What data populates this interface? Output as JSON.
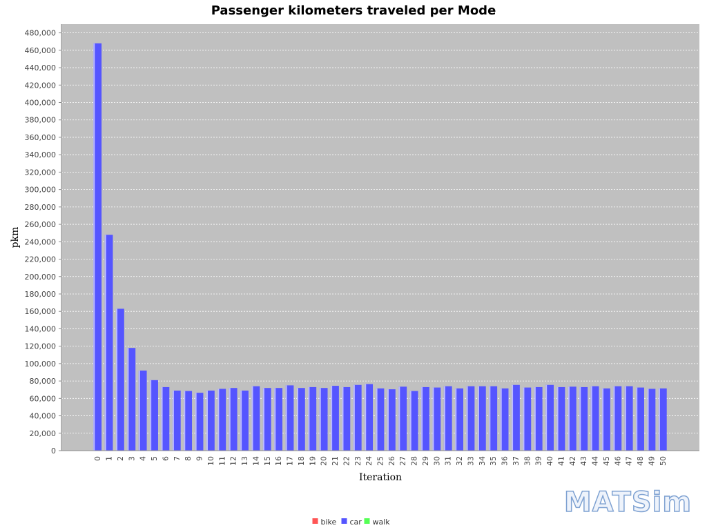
{
  "chart_data": {
    "type": "bar",
    "title": "Passenger kilometers traveled per Mode",
    "xlabel": "Iteration",
    "ylabel": "pkm",
    "ylim": [
      0,
      490000
    ],
    "ytick_step": 20000,
    "grid": true,
    "legend_position": "bottom",
    "categories": [
      "0",
      "1",
      "2",
      "3",
      "4",
      "5",
      "6",
      "7",
      "8",
      "9",
      "10",
      "11",
      "12",
      "13",
      "14",
      "15",
      "16",
      "17",
      "18",
      "19",
      "20",
      "21",
      "22",
      "23",
      "24",
      "25",
      "26",
      "27",
      "28",
      "29",
      "30",
      "31",
      "32",
      "33",
      "34",
      "35",
      "36",
      "37",
      "38",
      "39",
      "40",
      "41",
      "42",
      "43",
      "44",
      "45",
      "46",
      "47",
      "48",
      "49",
      "50"
    ],
    "series": [
      {
        "name": "bike",
        "color": "#ff5555",
        "values": [
          0,
          0,
          0,
          0,
          0,
          0,
          0,
          0,
          0,
          0,
          0,
          0,
          0,
          0,
          0,
          0,
          0,
          0,
          0,
          0,
          0,
          0,
          0,
          0,
          0,
          0,
          0,
          0,
          0,
          0,
          0,
          0,
          0,
          0,
          0,
          0,
          0,
          0,
          0,
          0,
          0,
          0,
          0,
          0,
          0,
          0,
          0,
          0,
          0,
          0,
          0
        ]
      },
      {
        "name": "car",
        "color": "#5555ff",
        "values": [
          468000,
          248000,
          163000,
          118000,
          92000,
          81000,
          73000,
          69000,
          68500,
          66500,
          69000,
          71000,
          72000,
          69000,
          74000,
          72000,
          72000,
          75000,
          72000,
          73000,
          72000,
          74500,
          73000,
          75500,
          76500,
          71500,
          70500,
          73500,
          68500,
          73000,
          72500,
          74000,
          71500,
          74000,
          74000,
          74000,
          71500,
          75500,
          72500,
          73000,
          75500,
          73000,
          73500,
          73000,
          74000,
          71500,
          74000,
          74000,
          72500,
          71000,
          71500
        ]
      },
      {
        "name": "walk",
        "color": "#55ff55",
        "values": [
          0,
          0,
          0,
          0,
          0,
          0,
          0,
          0,
          0,
          0,
          0,
          0,
          0,
          0,
          0,
          0,
          0,
          0,
          0,
          0,
          0,
          0,
          0,
          0,
          0,
          0,
          0,
          0,
          0,
          0,
          0,
          0,
          0,
          0,
          0,
          0,
          0,
          0,
          0,
          0,
          0,
          0,
          0,
          0,
          0,
          0,
          0,
          0,
          0,
          0,
          0
        ]
      }
    ]
  },
  "logo_text": "MATSim",
  "colors": {
    "plot_background": "#c0c0c0",
    "grid": "#ffffff",
    "bar_fill": "#5555ff",
    "bar_highlight": "#bcbcff"
  }
}
